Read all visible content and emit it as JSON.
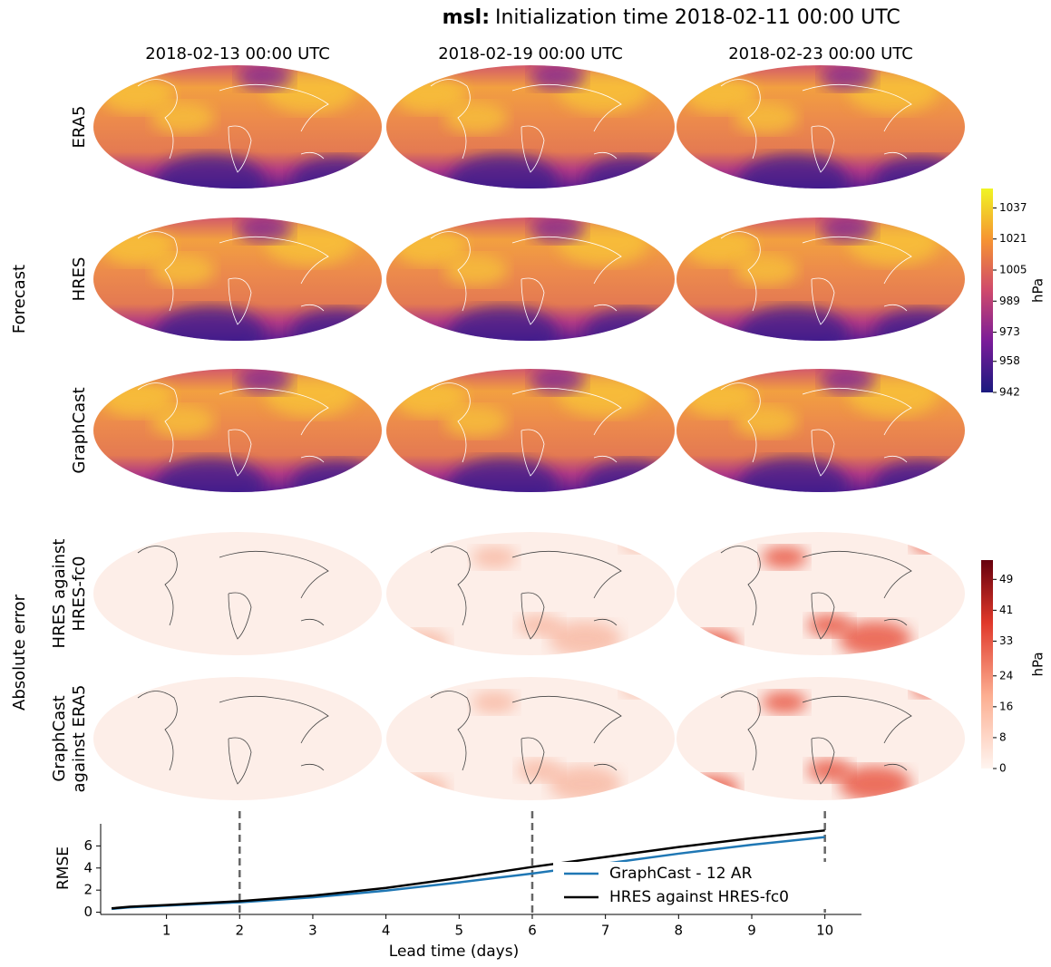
{
  "figure": {
    "title_prefix": "msl:",
    "title": "Initialization time 2018-02-11 00:00 UTC",
    "columns": [
      "2018-02-13 00:00 UTC",
      "2018-02-19 00:00 UTC",
      "2018-02-23 00:00 UTC"
    ],
    "row_groups": [
      "Forecast",
      "Absolute error"
    ],
    "rows": [
      [
        "ERA5"
      ],
      [
        "HRES"
      ],
      [
        "GraphCast"
      ],
      [
        "HRES against",
        "HRES-fc0"
      ],
      [
        "GraphCast",
        "against ERA5"
      ]
    ],
    "colorbars": [
      {
        "label": "hPa",
        "lim": [
          942,
          1047
        ],
        "ticks": [
          942,
          958,
          973,
          989,
          1005,
          1021,
          1037
        ]
      },
      {
        "label": "hPa",
        "lim": [
          0,
          54
        ],
        "ticks": [
          0,
          8,
          16,
          24,
          33,
          41,
          49
        ]
      }
    ]
  },
  "chart_data": {
    "type": "line",
    "xlabel": "Lead time (days)",
    "ylabel": "RMSE",
    "xlim": [
      0.1,
      10.5
    ],
    "ylim": [
      -0.2,
      8
    ],
    "xticks": [
      1,
      2,
      3,
      4,
      5,
      6,
      7,
      8,
      9,
      10
    ],
    "yticks": [
      0,
      2,
      4,
      6
    ],
    "x": [
      0.25,
      0.5,
      1,
      2,
      3,
      4,
      5,
      6,
      7,
      8,
      9,
      10
    ],
    "series": [
      {
        "name": "GraphCast - 12 AR",
        "color": "#1f77b4",
        "values": [
          0.3,
          0.45,
          0.6,
          0.9,
          1.35,
          1.95,
          2.7,
          3.5,
          4.4,
          5.3,
          6.1,
          6.8
        ]
      },
      {
        "name": "HRES against HRES-fc0",
        "color": "#000000",
        "values": [
          0.35,
          0.5,
          0.65,
          1.0,
          1.5,
          2.2,
          3.1,
          4.1,
          5.0,
          5.9,
          6.7,
          7.4
        ]
      }
    ],
    "vlines": [
      2,
      6,
      10
    ],
    "legend": "lower right"
  }
}
